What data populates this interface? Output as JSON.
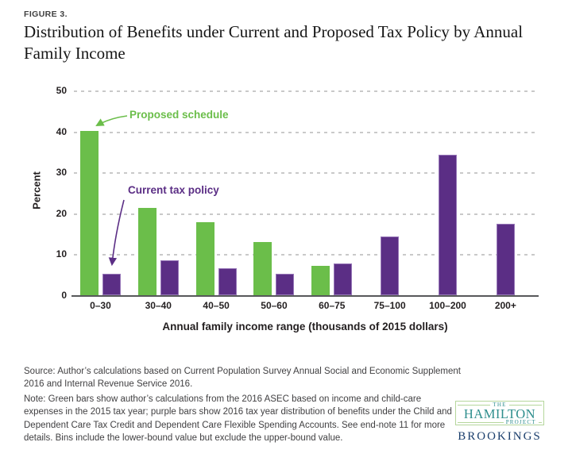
{
  "figure_label": "FIGURE 3.",
  "title": "Distribution of Benefits under Current and Proposed Tax Policy by Annual Family Income",
  "chart_data": {
    "type": "bar",
    "categories": [
      "0–30",
      "30–40",
      "40–50",
      "50–60",
      "60–75",
      "75–100",
      "100–200",
      "200+"
    ],
    "series": [
      {
        "name": "Proposed schedule",
        "color": "#6bbe4a",
        "values": [
          40.2,
          21.3,
          17.9,
          13.0,
          7.1,
          null,
          null,
          null
        ]
      },
      {
        "name": "Current tax policy",
        "color": "#5b2e85",
        "values": [
          5.3,
          8.5,
          6.5,
          5.2,
          7.8,
          14.3,
          34.4,
          17.4
        ]
      }
    ],
    "title": "",
    "xlabel": "Annual family income range (thousands of 2015 dollars)",
    "ylabel": "Percent",
    "ylim": [
      0,
      50
    ],
    "yticks": [
      0,
      10,
      20,
      30,
      40,
      50
    ],
    "grid": "horizontal-dashed",
    "legend_position": "annotations-with-arrows",
    "annotations": [
      {
        "text": "Proposed schedule",
        "series": "Proposed schedule",
        "points_to": "0–30 green bar"
      },
      {
        "text": "Current tax policy",
        "series": "Current tax policy",
        "points_to": "0–30 purple bar"
      }
    ]
  },
  "source": "Source: Author’s calculations based on Current Population Survey Annual Social and Economic Supplement 2016 and Internal Revenue Service 2016.",
  "note": "Note: Green bars show author’s calculations from the 2016 ASEC based on income and child-care expenses in the 2015 tax year; purple bars show 2016 tax year distribution of benefits under the Child and Dependent Care Tax Credit and Dependent Care Flexible Spending Accounts. See end-note 11 for more details. Bins include the lower-bound value but exclude the upper-bound value.",
  "logo": {
    "the": "THE",
    "hamilton": "HAMILTON",
    "project": "PROJECT",
    "brookings": "BROOKINGS"
  },
  "colors": {
    "green": "#6bbe4a",
    "purple": "#5b2e85",
    "grid": "#c9c9c9",
    "axis": "#57585a",
    "teal": "#2e8e8d",
    "navy": "#1a3e6c",
    "logo_border": "#b5d69c",
    "text_dark": "#231f20",
    "note_text": "#414042"
  }
}
